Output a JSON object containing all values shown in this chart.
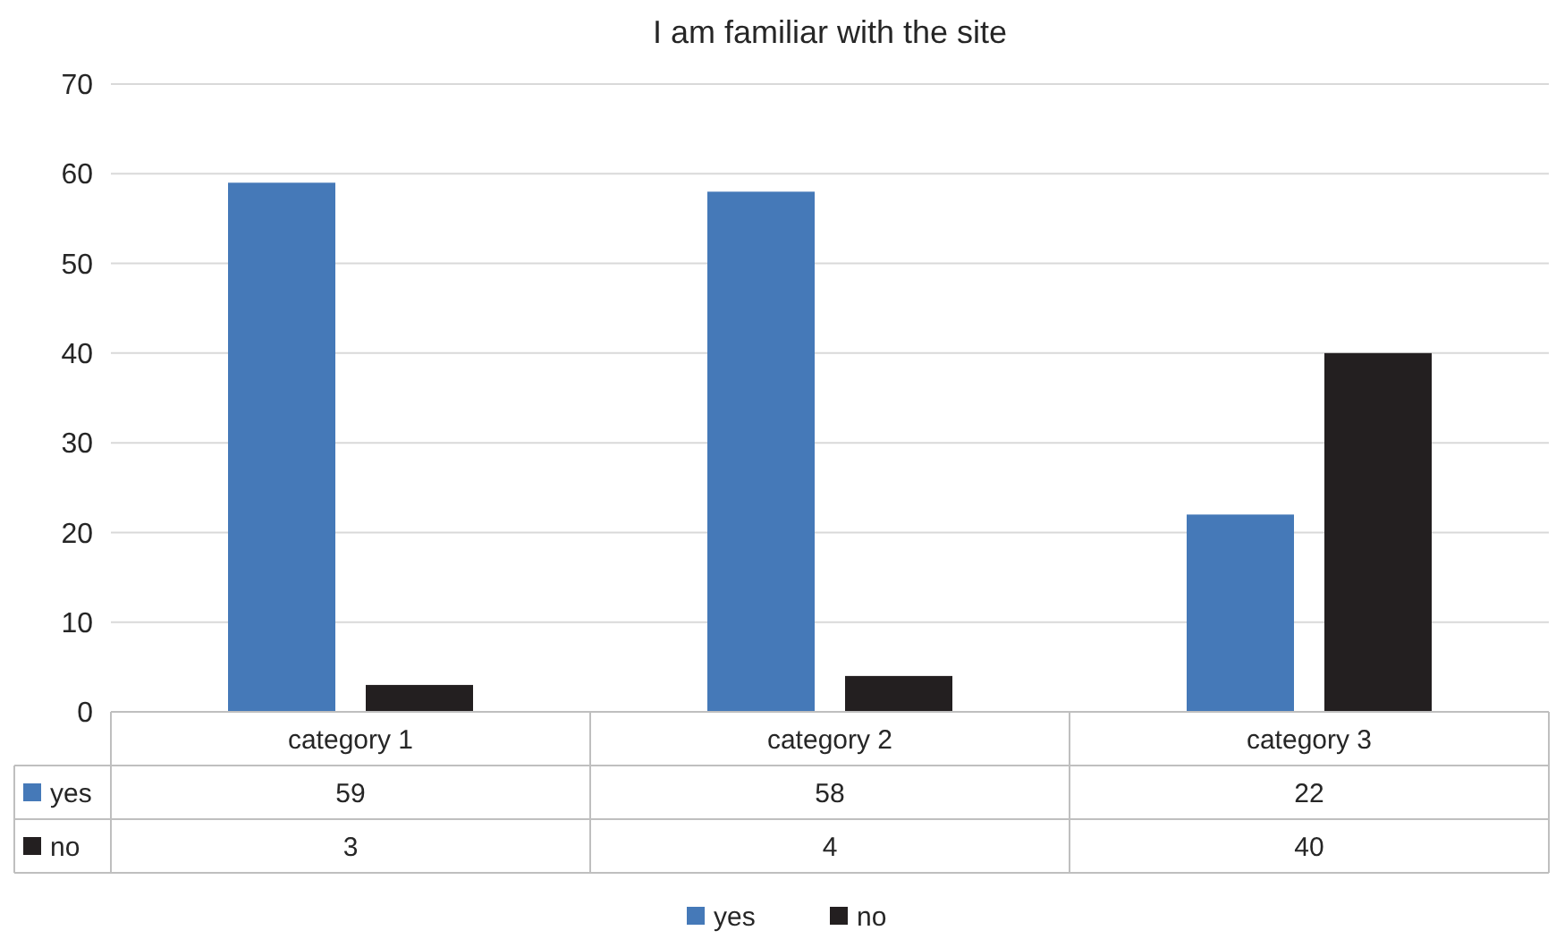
{
  "chart_data": {
    "type": "bar",
    "title": "I am familiar with the site",
    "categories": [
      "category 1",
      "category 2",
      "category 3"
    ],
    "series": [
      {
        "name": "yes",
        "color": "#4579b8",
        "values": [
          59,
          58,
          22
        ]
      },
      {
        "name": "no",
        "color": "#231f20",
        "values": [
          3,
          4,
          40
        ]
      }
    ],
    "ylim": [
      0,
      70
    ],
    "yticks": [
      0,
      10,
      20,
      30,
      40,
      50,
      60,
      70
    ],
    "grid": "y",
    "data_labels": true,
    "legend": "bottom"
  }
}
